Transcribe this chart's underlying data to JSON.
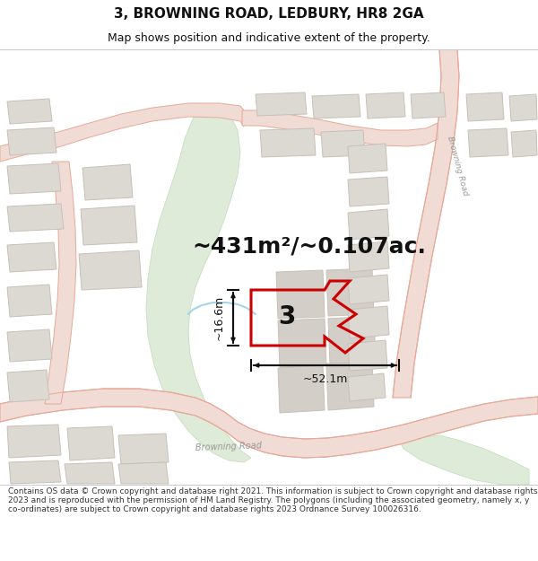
{
  "title_line1": "3, BROWNING ROAD, LEDBURY, HR8 2GA",
  "title_line2": "Map shows position and indicative extent of the property.",
  "area_text": "~431m²/~0.107ac.",
  "width_label": "~52.1m",
  "height_label": "~16.6m",
  "number_label": "3",
  "footer_text": "Contains OS data © Crown copyright and database right 2021. This information is subject to Crown copyright and database rights 2023 and is reproduced with the permission of HM Land Registry. The polygons (including the associated geometry, namely x, y co-ordinates) are subject to Crown copyright and database rights 2023 Ordnance Survey 100026316.",
  "map_bg": "#f2eeea",
  "road_fill": "#f0dbd5",
  "road_edge": "#e8a898",
  "green_fill": "#deebd8",
  "green_edge": "#c8ddc0",
  "bld_fill": "#dcd8d2",
  "bld_edge": "#c8c0b8",
  "prop_color": "#cc0000",
  "dim_color": "#111111",
  "label_color": "#999999",
  "water_color": "#c8e8f0",
  "white": "#ffffff",
  "text_color": "#111111",
  "footer_color": "#333333",
  "title_font": 11,
  "sub_font": 9,
  "area_font": 18,
  "num_font": 20,
  "dim_font": 9,
  "road_label_font": 7,
  "footer_font": 6.5
}
